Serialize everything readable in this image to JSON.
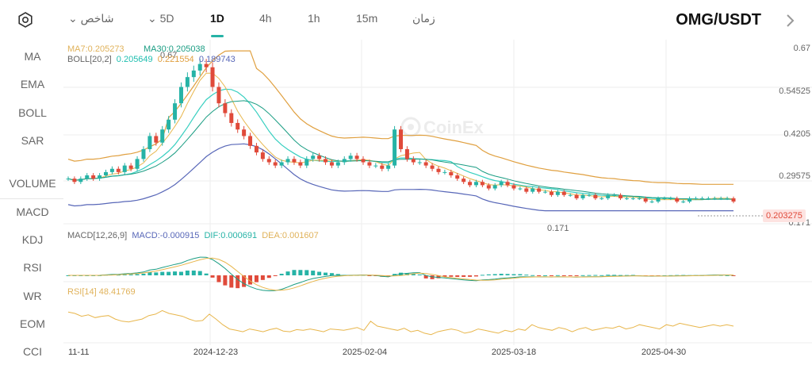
{
  "toolbar": {
    "indicators_label": "شاخص",
    "timeframes": [
      "5D",
      "1D",
      "4h",
      "1h",
      "15m"
    ],
    "active_timeframe": "1D",
    "time_label": "زمان",
    "pair": "OMG/USDT",
    "settings_icon": "gear-icon",
    "next_icon": "chevron-right-icon"
  },
  "sidebar": {
    "main_items": [
      "MA",
      "EMA",
      "BOLL",
      "SAR"
    ],
    "sub_items": [
      "VOLUME",
      "MACD",
      "KDJ",
      "RSI",
      "WR",
      "EOM",
      "CCI"
    ],
    "active": [
      "MA",
      "BOLL",
      "MACD",
      "RSI"
    ]
  },
  "legends": {
    "ma7": "MA7:0.205273",
    "ma30": "MA30:0.205038",
    "boll_name": "BOLL[20,2]",
    "boll_mid": "0.205649",
    "boll_up": "0.221554",
    "boll_dn": "0.189743",
    "macd_name": "MACD[12,26,9]",
    "macd_val": "MACD:-0.000915",
    "dif_val": "DIF:0.000691",
    "dea_val": "DEA:0.001607",
    "rsi": "RSI[14] 48.41769"
  },
  "watermark": "CoinEx",
  "current_price": "0.203275",
  "colors": {
    "up": "#26b3a6",
    "down": "#e04a3a",
    "ma7": "#e8b64c",
    "ma30": "#1a9d83",
    "boll_up": "#e0a040",
    "boll_mid": "#37cfc0",
    "boll_dn": "#5867b8"
  },
  "chart_data": {
    "type": "candlestick",
    "price_axis_ticks": [
      "0.67",
      "0.54525",
      "0.4205",
      "0.29575",
      "0.171"
    ],
    "x_ticks": [
      "11-11",
      "2024-12-23",
      "2025-02-04",
      "2025-03-18",
      "2025-04-30"
    ],
    "annotations": {
      "high": "0.67",
      "low": "0.171"
    },
    "close_values": [
      0.27,
      0.26,
      0.27,
      0.28,
      0.27,
      0.28,
      0.29,
      0.3,
      0.29,
      0.31,
      0.3,
      0.33,
      0.36,
      0.4,
      0.38,
      0.42,
      0.45,
      0.5,
      0.55,
      0.58,
      0.6,
      0.62,
      0.61,
      0.55,
      0.5,
      0.47,
      0.44,
      0.42,
      0.4,
      0.37,
      0.35,
      0.33,
      0.32,
      0.31,
      0.32,
      0.33,
      0.32,
      0.31,
      0.33,
      0.34,
      0.33,
      0.32,
      0.31,
      0.32,
      0.33,
      0.34,
      0.33,
      0.32,
      0.31,
      0.31,
      0.3,
      0.31,
      0.42,
      0.36,
      0.33,
      0.32,
      0.32,
      0.31,
      0.3,
      0.29,
      0.29,
      0.28,
      0.27,
      0.26,
      0.25,
      0.26,
      0.25,
      0.24,
      0.25,
      0.26,
      0.25,
      0.24,
      0.24,
      0.23,
      0.24,
      0.23,
      0.23,
      0.22,
      0.23,
      0.22,
      0.22,
      0.21,
      0.22,
      0.22,
      0.21,
      0.21,
      0.22,
      0.22,
      0.21,
      0.21,
      0.21,
      0.21,
      0.2,
      0.2,
      0.21,
      0.21,
      0.21,
      0.2,
      0.2,
      0.21,
      0.21,
      0.21,
      0.21,
      0.21,
      0.21,
      0.21,
      0.2
    ],
    "rsi_values": [
      68,
      66,
      62,
      64,
      60,
      62,
      63,
      58,
      55,
      54,
      56,
      58,
      63,
      65,
      70,
      66,
      64,
      62,
      58,
      55,
      56,
      65,
      58,
      50,
      44,
      42,
      40,
      44,
      42,
      40,
      43,
      45,
      41,
      40,
      43,
      42,
      44,
      42,
      40,
      44,
      43,
      42,
      44,
      46,
      42,
      55,
      48,
      46,
      44,
      42,
      45,
      40,
      42,
      38,
      36,
      40,
      42,
      44,
      42,
      38,
      40,
      44,
      42,
      40,
      38,
      42,
      40,
      44,
      42,
      50,
      46,
      44,
      42,
      46,
      44,
      40,
      44,
      46,
      42,
      44,
      46,
      45,
      48,
      44,
      46,
      50,
      48,
      46,
      44,
      50,
      48,
      52,
      50,
      48,
      46,
      48,
      50,
      48,
      50,
      48
    ]
  }
}
